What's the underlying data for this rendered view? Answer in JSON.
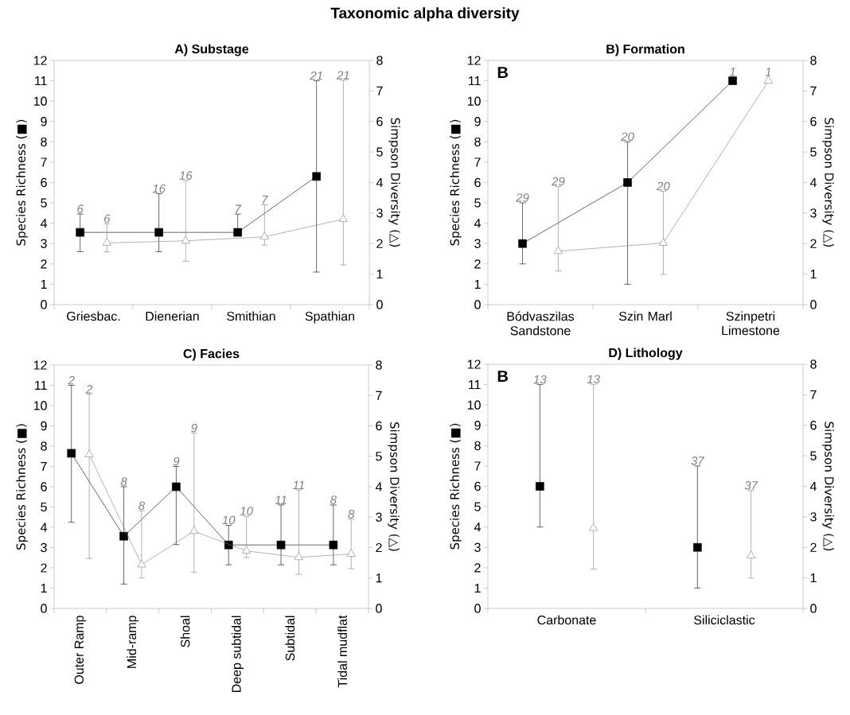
{
  "chart_data": [
    {
      "type": "line",
      "title": "Taxonomic alpha diversity",
      "subtitle": "A) Substage",
      "categories": [
        "Griesbac.",
        "Dienerian",
        "Smithian",
        "Spathian"
      ],
      "ylabel": "Species Richness (■)",
      "y2label": "Simpson Diversity (△)",
      "ylim": [
        0,
        12
      ],
      "yticks": [
        0,
        1,
        2,
        3,
        4,
        5,
        6,
        7,
        8,
        9,
        10,
        11,
        12
      ],
      "y2lim": [
        0,
        8
      ],
      "y2ticks": [
        0,
        1,
        2,
        3,
        4,
        5,
        6,
        7,
        8
      ],
      "annotations": [
        "6",
        "16",
        "7",
        "21",
        "6",
        "16",
        "7",
        "21"
      ],
      "series": [
        {
          "color": "#000000",
          "marker": "square",
          "values": [
            3.55,
            3.55,
            3.55,
            6.3
          ],
          "errors": [
            [
              2.6,
              4.45
            ],
            [
              2.6,
              5.45
            ],
            [
              3.55,
              4.45
            ],
            [
              1.6,
              11
            ]
          ]
        },
        {
          "color": "#808080",
          "marker": "triangle",
          "axis": "y2",
          "values": [
            2.02,
            2.09,
            2.22,
            2.8
          ],
          "errors": [
            [
              1.73,
              2.65
            ],
            [
              1.42,
              4.06
            ],
            [
              1.95,
              3.27
            ],
            [
              1.3,
              7.35
            ]
          ]
        }
      ]
    },
    {
      "type": "line",
      "subtitle": "B) Formation",
      "categories": [
        "Bódvaszilas Sandstone",
        "Szin Marl",
        "Szinpetri Limestone"
      ],
      "ylabel": "Species Richness (■)",
      "y2label": "Simpson Diversity (△)",
      "ylim": [
        0,
        12
      ],
      "yticks": [
        0,
        1,
        2,
        3,
        4,
        5,
        6,
        7,
        8,
        9,
        10,
        11,
        12
      ],
      "y2lim": [
        0,
        8
      ],
      "y2ticks": [
        0,
        1,
        2,
        3,
        4,
        5,
        6,
        7,
        8
      ],
      "annotations": [
        "29",
        "20",
        "1",
        "29",
        "20",
        "1",
        "B"
      ],
      "series": [
        {
          "color": "#000000",
          "marker": "square",
          "values": [
            3,
            6,
            11
          ],
          "errors": [
            [
              2,
              5
            ],
            [
              1,
              8
            ],
            null
          ]
        },
        {
          "color": "#808080",
          "marker": "triangle",
          "axis": "y2",
          "values": [
            1.75,
            2.02,
            7.33
          ],
          "errors": [
            [
              1.1,
              3.87
            ],
            [
              0.99,
              3.71
            ],
            null
          ]
        }
      ]
    },
    {
      "type": "line",
      "subtitle": "C) Facies",
      "categories": [
        "Outer Ramp",
        "Mid-ramp",
        "Shoal",
        "Deep subtidal",
        "Subtidal",
        "Tidal mudflat"
      ],
      "ylabel": "Species Richness (■)",
      "y2label": "Simpson Diversity (△)",
      "ylim": [
        0,
        12
      ],
      "yticks": [
        0,
        1,
        2,
        3,
        4,
        5,
        6,
        7,
        8,
        9,
        10,
        11,
        12
      ],
      "y2lim": [
        0,
        8
      ],
      "y2ticks": [
        0,
        1,
        2,
        3,
        4,
        5,
        6,
        7,
        8
      ],
      "annotations": [
        "2",
        "8",
        "9",
        "10",
        "11",
        "8",
        "2",
        "8",
        "9",
        "10",
        "11",
        "8"
      ],
      "series": [
        {
          "color": "#000000",
          "marker": "square",
          "values": [
            7.65,
            3.56,
            6.0,
            3.13,
            3.13,
            3.13
          ],
          "errors": [
            [
              4.25,
              11
            ],
            [
              1.2,
              6
            ],
            [
              3.15,
              7
            ],
            [
              2.15,
              4.1
            ],
            [
              2.15,
              5.1
            ],
            [
              2.15,
              5.1
            ]
          ]
        },
        {
          "color": "#808080",
          "marker": "triangle",
          "axis": "y2",
          "values": [
            5.06,
            1.44,
            2.54,
            1.89,
            1.68,
            1.79
          ],
          "errors": [
            [
              1.64,
              7.04
            ],
            [
              1.0,
              3.21
            ],
            [
              1.19,
              5.76
            ],
            [
              1.67,
              3.03
            ],
            [
              1.12,
              3.89
            ],
            [
              1.31,
              2.93
            ]
          ]
        }
      ]
    },
    {
      "type": "scatter",
      "subtitle": "D) Lithology",
      "categories": [
        "Carbonate",
        "Siliciclastic"
      ],
      "ylabel": "Species Richness (■)",
      "y2label": "Simpson Diversity (△)",
      "ylim": [
        0,
        12
      ],
      "yticks": [
        0,
        1,
        2,
        3,
        4,
        5,
        6,
        7,
        8,
        9,
        10,
        11,
        12
      ],
      "y2lim": [
        0,
        8
      ],
      "y2ticks": [
        0,
        1,
        2,
        3,
        4,
        5,
        6,
        7,
        8
      ],
      "annotations": [
        "13",
        "37",
        "13",
        "37",
        "B"
      ],
      "series": [
        {
          "color": "#000000",
          "marker": "square",
          "values": [
            6,
            3
          ],
          "errors": [
            [
              4,
              11
            ],
            [
              1,
              7
            ]
          ]
        },
        {
          "color": "#808080",
          "marker": "triangle",
          "axis": "y2",
          "values": [
            2.63,
            1.73
          ],
          "errors": [
            [
              1.29,
              7.34
            ],
            [
              0.99,
              3.86
            ]
          ]
        }
      ]
    }
  ]
}
